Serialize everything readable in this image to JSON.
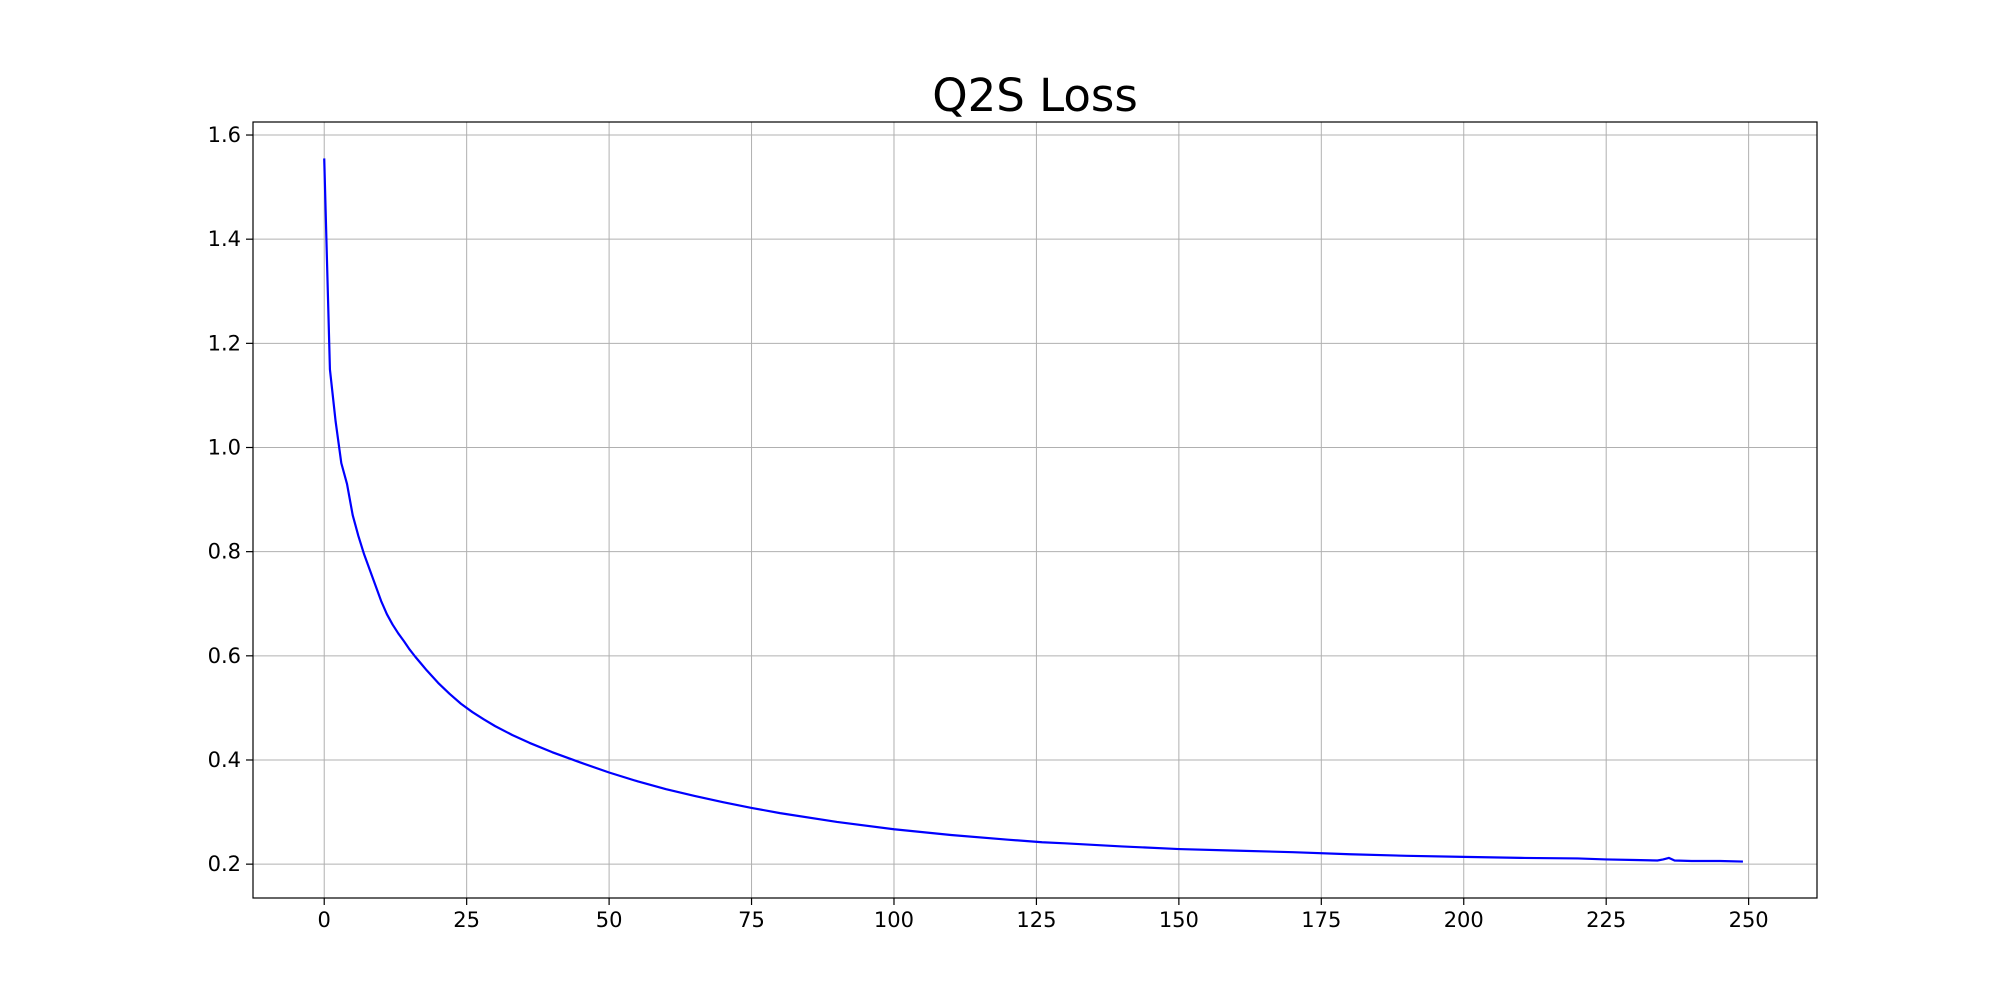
{
  "chart_data": {
    "type": "line",
    "title": "Q2S Loss",
    "xlabel": "",
    "ylabel": "",
    "xlim": [
      -12.5,
      262
    ],
    "ylim": [
      0.135,
      1.625
    ],
    "xticks": [
      0,
      25,
      50,
      75,
      100,
      125,
      150,
      175,
      200,
      225,
      250
    ],
    "yticks": [
      0.2,
      0.4,
      0.6,
      0.8,
      1.0,
      1.2,
      1.4,
      1.6
    ],
    "xtick_labels": [
      "0",
      "25",
      "50",
      "75",
      "100",
      "125",
      "150",
      "175",
      "200",
      "225",
      "250"
    ],
    "ytick_labels": [
      "0.2",
      "0.4",
      "0.6",
      "0.8",
      "1.0",
      "1.2",
      "1.4",
      "1.6"
    ],
    "grid": true,
    "line_color": "#0000ff",
    "series": [
      {
        "x": [
          0,
          1,
          2,
          3,
          4,
          5,
          6,
          7,
          8,
          9,
          10,
          11,
          12,
          13,
          14,
          15,
          16,
          17,
          18,
          19,
          20,
          22,
          24,
          26,
          28,
          30,
          33,
          36,
          40,
          45,
          50,
          55,
          60,
          65,
          70,
          75,
          80,
          90,
          100,
          110,
          120,
          126,
          130,
          140,
          150,
          160,
          170,
          180,
          190,
          200,
          210,
          220,
          225,
          230,
          234,
          235,
          236,
          237,
          240,
          245,
          249
        ],
        "y": [
          1.555,
          1.15,
          1.05,
          0.97,
          0.93,
          0.87,
          0.83,
          0.795,
          0.765,
          0.735,
          0.705,
          0.68,
          0.66,
          0.643,
          0.628,
          0.612,
          0.598,
          0.585,
          0.572,
          0.56,
          0.548,
          0.527,
          0.508,
          0.492,
          0.478,
          0.465,
          0.448,
          0.433,
          0.415,
          0.395,
          0.376,
          0.359,
          0.344,
          0.331,
          0.319,
          0.308,
          0.298,
          0.281,
          0.267,
          0.256,
          0.247,
          0.242,
          0.24,
          0.234,
          0.229,
          0.226,
          0.223,
          0.219,
          0.216,
          0.214,
          0.212,
          0.211,
          0.209,
          0.208,
          0.207,
          0.209,
          0.212,
          0.207,
          0.206,
          0.206,
          0.205
        ]
      }
    ]
  }
}
